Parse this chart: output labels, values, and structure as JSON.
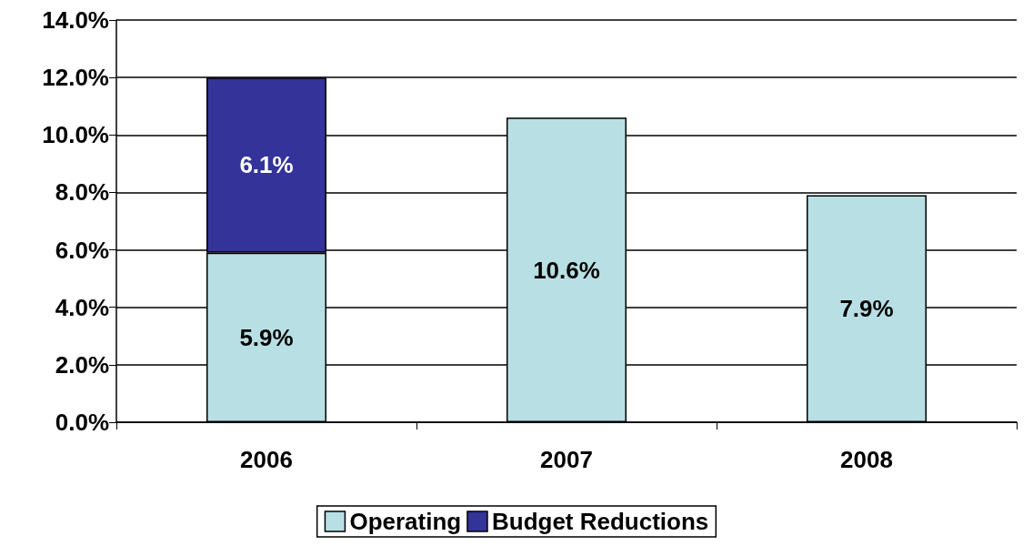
{
  "chart_data": {
    "type": "bar",
    "stacked": true,
    "categories": [
      "2006",
      "2007",
      "2008"
    ],
    "series": [
      {
        "name": "Operating",
        "color": "#b8e0e4",
        "values": [
          5.9,
          10.6,
          7.9
        ],
        "value_labels": [
          "5.9%",
          "10.6%",
          "7.9%"
        ]
      },
      {
        "name": "Budget Reductions",
        "color": "#333399",
        "values": [
          6.1,
          null,
          null
        ],
        "value_labels": [
          "6.1%",
          null,
          null
        ]
      }
    ],
    "ylim": [
      0,
      14
    ],
    "yticks": [
      {
        "value": 0,
        "label": "0.0%"
      },
      {
        "value": 2,
        "label": "2.0%"
      },
      {
        "value": 4,
        "label": "4.0%"
      },
      {
        "value": 6,
        "label": "6.0%"
      },
      {
        "value": 8,
        "label": "8.0%"
      },
      {
        "value": 10,
        "label": "10.0%"
      },
      {
        "value": 12,
        "label": "12.0%"
      },
      {
        "value": 14,
        "label": "14.0%"
      }
    ],
    "grid": "y",
    "legend": "bottom"
  }
}
